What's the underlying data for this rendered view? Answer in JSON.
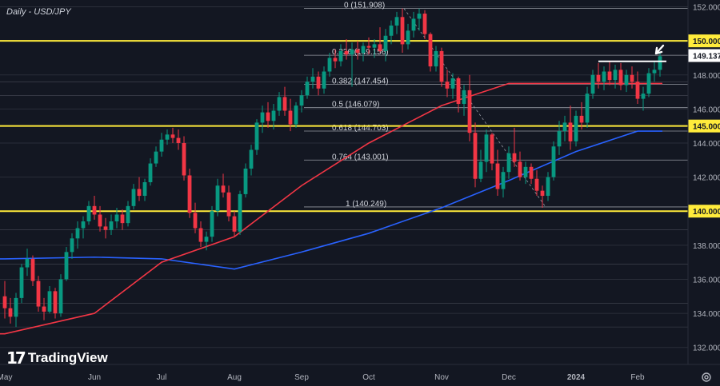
{
  "chart_data": {
    "type": "candlestick",
    "title": "Daily - USD/JPY",
    "watermark": "TradingView",
    "price_axis": {
      "min": 131.0,
      "max": 152.4,
      "ticks": [
        "152.000",
        "150.000",
        "148.000",
        "146.000",
        "144.000",
        "142.000",
        "140.000",
        "138.000",
        "136.000",
        "134.000",
        "132.000"
      ]
    },
    "time_axis": {
      "labels": [
        "May",
        "Jun",
        "Jul",
        "Aug",
        "Sep",
        "Oct",
        "Nov",
        "Dec",
        "2024",
        "Feb"
      ]
    },
    "current_price": {
      "value": 149.137,
      "label": "149.137"
    },
    "horizontal_levels": [
      {
        "value": 150.0,
        "label": "150.000"
      },
      {
        "value": 145.0,
        "label": "145.000"
      },
      {
        "value": 140.0,
        "label": "140.000"
      }
    ],
    "fibonacci": [
      {
        "label": "0 (151.908)",
        "value": 151.908
      },
      {
        "label": "0.236 (149.156)",
        "value": 149.156
      },
      {
        "label": "0.382 (147.454)",
        "value": 147.454
      },
      {
        "label": "0.5 (146.079)",
        "value": 146.079
      },
      {
        "label": "0.618 (144.703)",
        "value": 144.703
      },
      {
        "label": "0.764 (143.001)",
        "value": 143.001
      },
      {
        "label": "1 (140.249)",
        "value": 140.249
      }
    ],
    "resistance_line": {
      "value": 148.8
    },
    "sma_100": {
      "color": "#f23645",
      "points": [
        [
          "May",
          132.8
        ],
        [
          "Jun",
          134.0
        ],
        [
          "Jul",
          137.0
        ],
        [
          "Aug",
          138.5
        ],
        [
          "Sep",
          141.5
        ],
        [
          "Oct",
          144.0
        ],
        [
          "Nov",
          146.2
        ],
        [
          "Dec",
          147.5
        ],
        [
          "2024",
          147.5
        ],
        [
          "Feb",
          147.5
        ]
      ]
    },
    "sma_200": {
      "color": "#2962ff",
      "points": [
        [
          "May",
          137.2
        ],
        [
          "Jun",
          137.3
        ],
        [
          "Jul",
          137.2
        ],
        [
          "Aug",
          136.6
        ],
        [
          "Sep",
          137.6
        ],
        [
          "Oct",
          138.7
        ],
        [
          "Nov",
          140.2
        ],
        [
          "Dec",
          141.8
        ],
        [
          "2024",
          143.5
        ],
        [
          "Feb",
          144.7
        ]
      ]
    },
    "candles": [
      [
        135.0,
        135.9,
        133.7,
        134.3
      ],
      [
        134.3,
        134.9,
        133.4,
        133.8
      ],
      [
        133.8,
        135.2,
        133.2,
        134.9
      ],
      [
        134.9,
        136.9,
        134.6,
        136.7
      ],
      [
        136.7,
        137.8,
        136.2,
        137.2
      ],
      [
        137.2,
        137.4,
        135.6,
        135.9
      ],
      [
        135.9,
        136.2,
        134.1,
        134.4
      ],
      [
        134.4,
        134.9,
        133.6,
        134.1
      ],
      [
        134.1,
        135.6,
        134.0,
        135.3
      ],
      [
        135.3,
        135.5,
        133.7,
        134.0
      ],
      [
        134.0,
        136.3,
        133.8,
        136.0
      ],
      [
        136.0,
        137.9,
        135.9,
        137.6
      ],
      [
        137.6,
        138.7,
        137.2,
        138.4
      ],
      [
        138.4,
        139.4,
        137.8,
        139.0
      ],
      [
        139.0,
        139.7,
        138.4,
        139.4
      ],
      [
        139.4,
        140.6,
        139.2,
        140.3
      ],
      [
        140.3,
        140.9,
        139.5,
        139.8
      ],
      [
        139.8,
        140.3,
        138.8,
        139.1
      ],
      [
        139.1,
        139.6,
        138.4,
        138.9
      ],
      [
        138.9,
        139.8,
        138.6,
        139.4
      ],
      [
        139.4,
        140.2,
        139.0,
        139.8
      ],
      [
        139.8,
        140.1,
        138.9,
        139.3
      ],
      [
        139.3,
        140.6,
        139.1,
        140.3
      ],
      [
        140.3,
        141.6,
        140.1,
        141.3
      ],
      [
        141.3,
        142.0,
        140.6,
        140.9
      ],
      [
        140.9,
        141.9,
        140.6,
        141.7
      ],
      [
        141.7,
        143.1,
        141.5,
        142.8
      ],
      [
        142.8,
        143.8,
        142.6,
        143.5
      ],
      [
        143.5,
        144.6,
        143.2,
        144.2
      ],
      [
        144.2,
        144.8,
        143.9,
        144.5
      ],
      [
        144.5,
        144.9,
        144.0,
        144.3
      ],
      [
        144.3,
        144.8,
        143.6,
        144.0
      ],
      [
        144.0,
        144.4,
        141.8,
        142.1
      ],
      [
        142.1,
        142.5,
        139.6,
        139.9
      ],
      [
        139.9,
        140.5,
        138.7,
        139.0
      ],
      [
        139.0,
        139.4,
        137.9,
        138.2
      ],
      [
        138.2,
        138.8,
        137.7,
        138.5
      ],
      [
        138.5,
        140.3,
        138.2,
        140.0
      ],
      [
        140.0,
        141.9,
        139.7,
        141.5
      ],
      [
        141.5,
        142.2,
        140.8,
        141.1
      ],
      [
        141.1,
        141.5,
        139.4,
        139.7
      ],
      [
        139.7,
        140.0,
        138.5,
        138.8
      ],
      [
        138.8,
        141.2,
        138.6,
        141.0
      ],
      [
        141.0,
        142.8,
        140.8,
        142.5
      ],
      [
        142.5,
        143.9,
        142.1,
        143.6
      ],
      [
        143.6,
        145.4,
        143.3,
        145.2
      ],
      [
        145.2,
        146.2,
        144.6,
        145.8
      ],
      [
        145.8,
        146.4,
        144.9,
        145.3
      ],
      [
        145.3,
        146.3,
        144.8,
        145.9
      ],
      [
        145.9,
        147.0,
        145.6,
        146.7
      ],
      [
        146.7,
        147.3,
        145.6,
        145.9
      ],
      [
        145.9,
        146.6,
        144.7,
        145.1
      ],
      [
        145.1,
        146.4,
        144.9,
        146.2
      ],
      [
        146.2,
        147.1,
        145.8,
        146.8
      ],
      [
        146.8,
        147.9,
        146.6,
        147.6
      ],
      [
        147.6,
        148.4,
        147.2,
        147.9
      ],
      [
        147.9,
        148.2,
        146.8,
        147.2
      ],
      [
        147.2,
        148.5,
        146.9,
        148.2
      ],
      [
        148.2,
        149.3,
        147.9,
        149.0
      ],
      [
        149.0,
        149.5,
        148.4,
        148.8
      ],
      [
        148.8,
        149.8,
        148.5,
        149.4
      ],
      [
        149.4,
        150.1,
        148.9,
        149.2
      ],
      [
        149.2,
        149.9,
        147.3,
        149.5
      ],
      [
        149.5,
        150.0,
        148.9,
        149.3
      ],
      [
        149.3,
        149.9,
        148.8,
        149.7
      ],
      [
        149.7,
        150.2,
        149.2,
        149.6
      ],
      [
        149.6,
        150.1,
        149.0,
        149.8
      ],
      [
        149.8,
        150.8,
        149.3,
        149.4
      ],
      [
        149.4,
        150.7,
        148.8,
        150.3
      ],
      [
        150.3,
        151.2,
        149.8,
        150.9
      ],
      [
        150.9,
        151.7,
        150.4,
        151.4
      ],
      [
        151.4,
        151.9,
        149.3,
        149.8
      ],
      [
        149.8,
        151.0,
        149.5,
        150.6
      ],
      [
        150.6,
        151.7,
        150.2,
        151.3
      ],
      [
        151.3,
        151.9,
        150.6,
        151.6
      ],
      [
        151.6,
        151.8,
        150.1,
        150.4
      ],
      [
        150.4,
        150.5,
        148.2,
        148.5
      ],
      [
        148.5,
        149.7,
        148.2,
        149.4
      ],
      [
        149.4,
        149.6,
        147.3,
        147.6
      ],
      [
        147.6,
        148.3,
        146.7,
        147.2
      ],
      [
        147.2,
        148.1,
        146.6,
        147.8
      ],
      [
        147.8,
        147.9,
        145.8,
        146.3
      ],
      [
        146.3,
        147.4,
        145.6,
        147.1
      ],
      [
        147.1,
        148.0,
        144.1,
        144.6
      ],
      [
        144.6,
        145.2,
        141.4,
        141.9
      ],
      [
        141.9,
        143.6,
        141.7,
        142.9
      ],
      [
        142.9,
        144.8,
        142.3,
        144.5
      ],
      [
        144.5,
        144.6,
        142.4,
        142.8
      ],
      [
        142.8,
        143.6,
        140.9,
        141.3
      ],
      [
        141.3,
        142.6,
        140.8,
        142.3
      ],
      [
        142.3,
        143.8,
        141.9,
        143.4
      ],
      [
        143.4,
        144.9,
        142.6,
        142.9
      ],
      [
        142.9,
        143.5,
        141.8,
        142.0
      ],
      [
        142.0,
        142.9,
        141.6,
        142.6
      ],
      [
        142.6,
        142.8,
        141.6,
        141.9
      ],
      [
        141.9,
        142.4,
        140.9,
        141.2
      ],
      [
        141.2,
        141.5,
        140.2,
        140.9
      ],
      [
        140.9,
        142.3,
        140.6,
        142.0
      ],
      [
        142.0,
        144.1,
        141.8,
        143.8
      ],
      [
        143.8,
        145.3,
        143.3,
        144.7
      ],
      [
        144.7,
        145.6,
        144.1,
        145.2
      ],
      [
        145.2,
        146.2,
        143.6,
        144.1
      ],
      [
        144.1,
        145.9,
        143.8,
        145.6
      ],
      [
        145.6,
        146.4,
        144.8,
        145.2
      ],
      [
        145.2,
        147.3,
        144.9,
        146.9
      ],
      [
        146.9,
        148.3,
        146.6,
        148.0
      ],
      [
        148.0,
        148.7,
        147.2,
        147.6
      ],
      [
        147.6,
        148.5,
        147.1,
        148.2
      ],
      [
        148.2,
        148.8,
        147.4,
        147.7
      ],
      [
        147.7,
        148.6,
        147.2,
        148.3
      ],
      [
        148.3,
        148.7,
        147.1,
        147.4
      ],
      [
        147.4,
        148.3,
        147.0,
        148.0
      ],
      [
        148.0,
        148.5,
        147.2,
        147.6
      ],
      [
        147.6,
        148.2,
        146.3,
        146.6
      ],
      [
        146.6,
        147.3,
        145.9,
        146.9
      ],
      [
        146.9,
        148.4,
        146.7,
        148.1
      ],
      [
        148.1,
        148.8,
        147.6,
        148.3
      ],
      [
        148.3,
        149.3,
        147.9,
        149.1
      ]
    ]
  }
}
